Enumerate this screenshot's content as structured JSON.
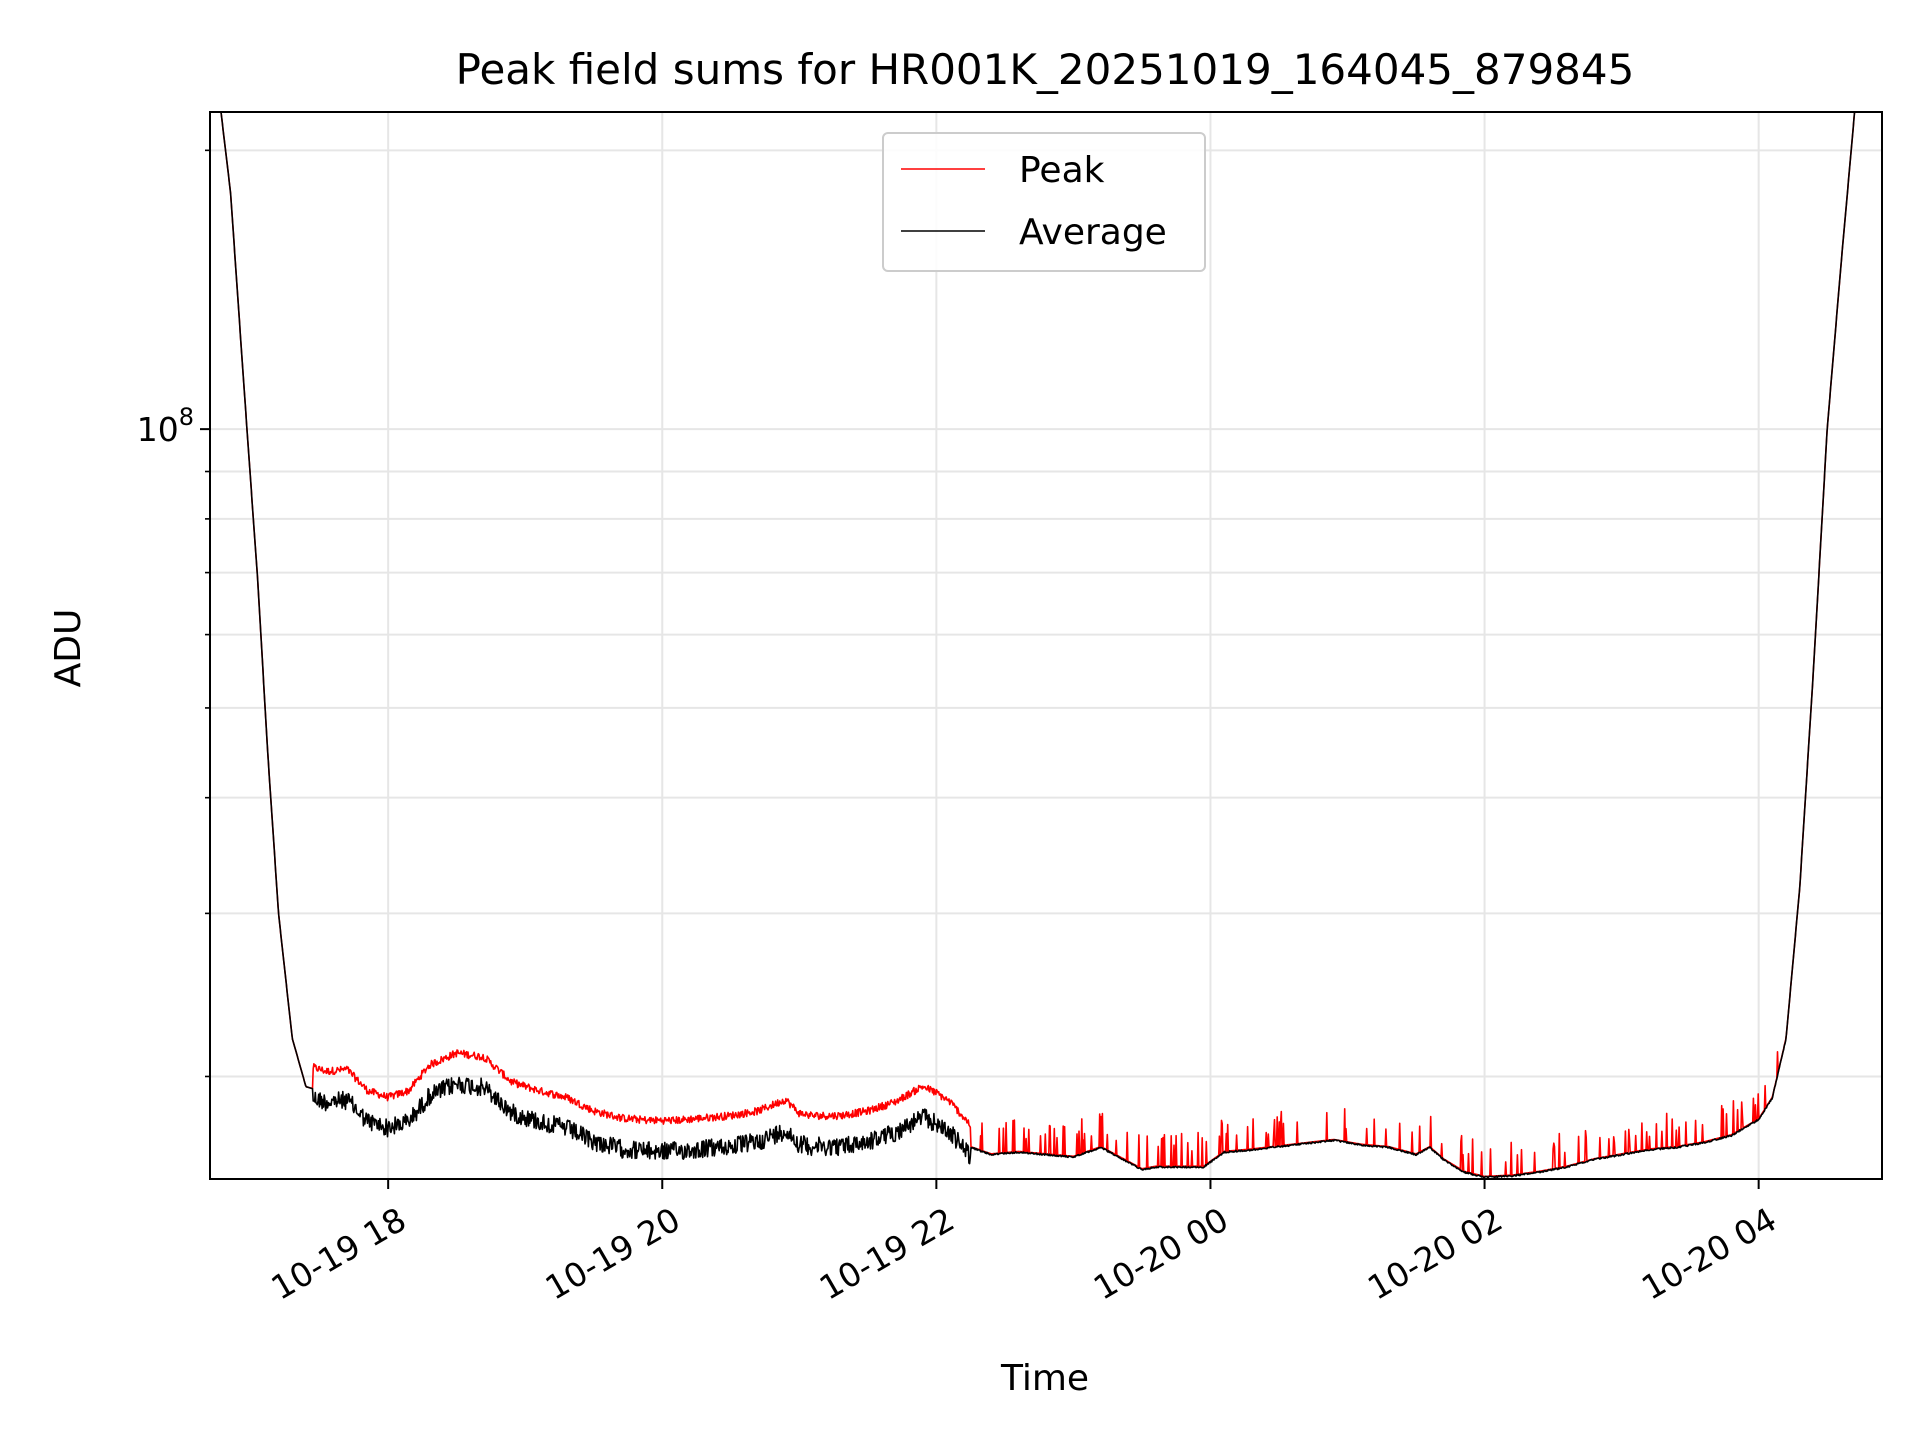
{
  "chart_data": {
    "type": "line",
    "title": "Peak field sums for HR001K_20251019_164045_879845",
    "xlabel": "Time",
    "ylabel": "ADU",
    "yscale": "log",
    "ylim": [
      15500000,
      220000000
    ],
    "xlim": [
      16.7,
      28.9
    ],
    "x_unit": "hours since 2025-10-19 00:00",
    "grid": true,
    "legend_position": "upper center",
    "x_ticks": [
      {
        "value": 18,
        "label": "10-19 18"
      },
      {
        "value": 20,
        "label": "10-19 20"
      },
      {
        "value": 22,
        "label": "10-19 22"
      },
      {
        "value": 24,
        "label": "10-20 00"
      },
      {
        "value": 26,
        "label": "10-20 02"
      },
      {
        "value": 28,
        "label": "10-20 04"
      }
    ],
    "y_major_ticks": [
      {
        "value": 100000000,
        "label_base": "10",
        "label_exp": "8"
      }
    ],
    "y_minor_ticks": [
      20000000,
      30000000,
      40000000,
      50000000,
      60000000,
      70000000,
      80000000,
      90000000,
      200000000
    ],
    "series": [
      {
        "name": "Peak",
        "color": "#ff0000"
      },
      {
        "name": "Average",
        "color": "#000000"
      }
    ],
    "average_profile": {
      "x": [
        16.75,
        16.85,
        16.95,
        17.05,
        17.12,
        17.2,
        17.3,
        17.4,
        17.55,
        17.7,
        17.85,
        18.0,
        18.15,
        18.3,
        18.5,
        18.7,
        18.9,
        19.1,
        19.3,
        19.5,
        19.7,
        19.9,
        20.1,
        20.3,
        20.5,
        20.7,
        20.9,
        21.0,
        21.1,
        21.3,
        21.5,
        21.7,
        21.9,
        22.0,
        22.1,
        22.25,
        22.4,
        22.6,
        22.8,
        23.0,
        23.2,
        23.4,
        23.5,
        23.6,
        23.8,
        23.95,
        24.1,
        24.3,
        24.6,
        24.9,
        25.1,
        25.3,
        25.5,
        25.6,
        25.7,
        25.85,
        26.0,
        26.2,
        26.4,
        26.6,
        26.8,
        27.0,
        27.2,
        27.4,
        27.6,
        27.8,
        28.0,
        28.1,
        28.2,
        28.3,
        28.4,
        28.5,
        28.6,
        28.7,
        28.8
      ],
      "y": [
        240000000,
        180000000,
        110000000,
        68000000,
        45000000,
        30000000,
        22000000,
        19500000,
        19200000,
        19300000,
        18300000,
        18000000,
        18300000,
        19500000,
        20100000,
        19900000,
        18700000,
        18300000,
        18000000,
        17400000,
        17100000,
        17000000,
        17000000,
        17100000,
        17200000,
        17400000,
        17900000,
        17300000,
        17200000,
        17200000,
        17400000,
        17800000,
        18500000,
        18200000,
        17800000,
        16800000,
        16500000,
        16600000,
        16500000,
        16400000,
        16800000,
        16200000,
        15900000,
        16000000,
        16000000,
        16000000,
        16600000,
        16700000,
        16900000,
        17100000,
        16900000,
        16800000,
        16500000,
        16800000,
        16300000,
        15800000,
        15600000,
        15650000,
        15800000,
        16000000,
        16300000,
        16500000,
        16700000,
        16800000,
        17000000,
        17300000,
        18000000,
        19000000,
        22000000,
        32000000,
        55000000,
        100000000,
        150000000,
        220000000,
        260000000
      ]
    },
    "peak_offset_ratio": {
      "noisy_segment_end": 22.25,
      "spike_segment_start": 22.25,
      "spike_segment_end": 28.2,
      "mean_ratio_noisy": 1.045,
      "max_spike_ratio": 1.09
    },
    "annotations": []
  }
}
